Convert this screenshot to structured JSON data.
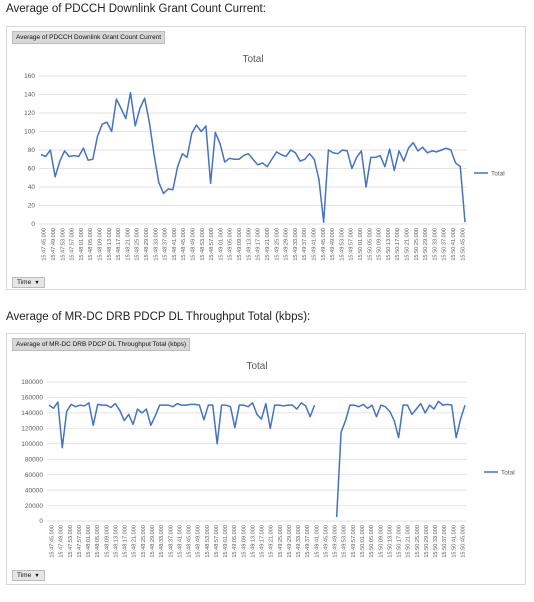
{
  "sections": [
    {
      "heading": "Average of PDCCH Downlink Grant Count Current:",
      "field_tag": "Average of PDCCH Downlink Grant Count Current",
      "filter_button": "Time",
      "filter_arrow": "▼"
    },
    {
      "heading": "Average of MR-DC DRB PDCP DL Throughput Total (kbps):",
      "field_tag": "Average of MR-DC DRB PDCP DL Throughput Total (kbps)",
      "filter_button": "Time",
      "filter_arrow": "▼"
    }
  ],
  "chart_data": [
    {
      "type": "line",
      "title": "Total",
      "series": [
        {
          "name": "Total",
          "color": "#4472c4",
          "values": [
            75,
            73,
            80,
            51,
            68,
            79,
            73,
            74,
            73,
            82,
            69,
            70,
            95,
            108,
            110,
            100,
            135,
            125,
            114,
            142,
            106,
            125,
            136,
            110,
            75,
            45,
            33,
            38,
            37,
            62,
            76,
            72,
            98,
            107,
            100,
            106,
            44,
            99,
            87,
            67,
            71,
            70,
            70,
            74,
            76,
            70,
            64,
            66,
            62,
            70,
            78,
            75,
            73,
            80,
            77,
            68,
            70,
            76,
            70,
            48,
            2,
            80,
            77,
            76,
            80,
            79,
            60,
            72,
            79,
            40,
            72,
            72,
            74,
            62,
            81,
            58,
            79,
            68,
            82,
            88,
            79,
            83,
            77,
            79,
            78,
            80,
            82,
            80,
            66,
            62,
            2
          ]
        }
      ],
      "ylim": [
        0,
        160
      ],
      "yticks": [
        0,
        20,
        40,
        60,
        80,
        100,
        120,
        140,
        160
      ],
      "x_tick_labels": [
        "15:47:45.000",
        "15:47:49.000",
        "15:47:53.000",
        "15:47:57.000",
        "15:48:01.000",
        "15:48:05.000",
        "15:48:09.000",
        "15:48:13.000",
        "15:48:17.000",
        "15:48:21.000",
        "15:48:25.000",
        "15:48:29.000",
        "15:48:33.000",
        "15:48:37.000",
        "15:48:41.000",
        "15:48:45.000",
        "15:48:49.000",
        "15:48:53.000",
        "15:48:57.000",
        "15:49:01.000",
        "15:49:05.000",
        "15:49:09.000",
        "15:49:13.000",
        "15:49:17.000",
        "15:49:21.000",
        "15:49:25.000",
        "15:49:29.000",
        "15:49:33.000",
        "15:49:37.000",
        "15:49:41.000",
        "15:49:45.000",
        "15:49:49.000",
        "15:49:53.000",
        "15:49:57.000",
        "15:50:01.000",
        "15:50:05.000",
        "15:50:09.000",
        "15:50:13.000",
        "15:50:17.000",
        "15:50:21.000",
        "15:50:25.000",
        "15:50:29.000",
        "15:50:33.000",
        "15:50:37.000",
        "15:50:41.000",
        "15:50:45.000"
      ],
      "legend": "right",
      "grid": true
    },
    {
      "type": "line",
      "title": "Total",
      "series": [
        {
          "name": "Total",
          "color": "#4472c4",
          "values": [
            150000,
            146000,
            154000,
            95000,
            142000,
            151000,
            148000,
            150000,
            149000,
            153000,
            124000,
            151000,
            150000,
            150000,
            147000,
            152000,
            143000,
            130000,
            138000,
            125000,
            145000,
            140000,
            145000,
            124000,
            136000,
            150000,
            150000,
            150000,
            148000,
            152000,
            150000,
            150000,
            151000,
            151000,
            150000,
            131000,
            150000,
            150000,
            100000,
            150000,
            150000,
            148000,
            121000,
            150000,
            150000,
            148000,
            153000,
            138000,
            132000,
            152000,
            120000,
            150000,
            150000,
            149000,
            150000,
            150000,
            145000,
            153000,
            149000,
            135000,
            150000,
            null,
            null,
            null,
            null,
            5000,
            115000,
            130000,
            150000,
            150000,
            148000,
            151000,
            146000,
            150000,
            135000,
            150000,
            148000,
            142000,
            130000,
            108000,
            150000,
            150000,
            138000,
            145000,
            152000,
            140000,
            150000,
            145000,
            155000,
            150000,
            151000,
            150000,
            108000,
            132000,
            150000
          ]
        }
      ],
      "ylim": [
        0,
        180000
      ],
      "yticks": [
        0,
        20000,
        40000,
        60000,
        80000,
        100000,
        120000,
        140000,
        160000,
        180000
      ],
      "x_tick_labels": [
        "15:47:45.000",
        "15:47:49.000",
        "15:47:53.000",
        "15:47:57.000",
        "15:48:01.000",
        "15:48:05.000",
        "15:48:09.000",
        "15:48:13.000",
        "15:48:17.000",
        "15:48:21.000",
        "15:48:25.000",
        "15:48:29.000",
        "15:48:33.000",
        "15:48:37.000",
        "15:48:41.000",
        "15:48:45.000",
        "15:48:49.000",
        "15:48:53.000",
        "15:48:57.000",
        "15:49:01.000",
        "15:49:05.000",
        "15:49:09.000",
        "15:49:13.000",
        "15:49:17.000",
        "15:49:21.000",
        "15:49:25.000",
        "15:49:29.000",
        "15:49:33.000",
        "15:49:37.000",
        "15:49:41.000",
        "15:49:45.000",
        "15:49:49.000",
        "15:49:53.000",
        "15:49:57.000",
        "15:50:01.000",
        "15:50:05.000",
        "15:50:09.000",
        "15:50:13.000",
        "15:50:17.000",
        "15:50:21.000",
        "15:50:25.000",
        "15:50:29.000",
        "15:50:33.000",
        "15:50:37.000",
        "15:50:41.000",
        "15:50:45.000"
      ],
      "legend": "right",
      "grid": true
    }
  ]
}
